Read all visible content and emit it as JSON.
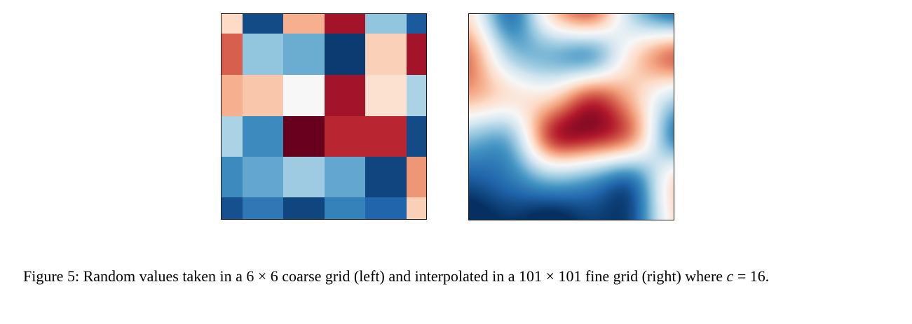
{
  "figure": {
    "colormap": "RdBu_r",
    "coarse_grid": {
      "label": "6 × 6 coarse grid (left)",
      "size": [
        6,
        6
      ],
      "values": [
        [
          0.6,
          0.05,
          0.68,
          0.92,
          0.3,
          0.08
        ],
        [
          0.8,
          0.3,
          0.25,
          0.02,
          0.62,
          0.92
        ],
        [
          0.68,
          0.64,
          0.5,
          0.92,
          0.58,
          0.34
        ],
        [
          0.34,
          0.18,
          1.0,
          0.88,
          0.88,
          0.05
        ],
        [
          0.18,
          0.24,
          0.32,
          0.24,
          0.04,
          0.72
        ],
        [
          0.06,
          0.14,
          0.04,
          0.16,
          0.1,
          0.62
        ]
      ]
    },
    "fine_grid": {
      "label": "101 × 101 fine grid (right)",
      "size": [
        101,
        101
      ]
    }
  },
  "caption": {
    "figure_label": "Figure 5:",
    "text_before_math": " Random values taken in a 6 × 6 coarse grid (left) and interpolated in a 101 × 101 fine grid (right) where ",
    "math_variable": "c",
    "text_after_math": " = 16."
  }
}
